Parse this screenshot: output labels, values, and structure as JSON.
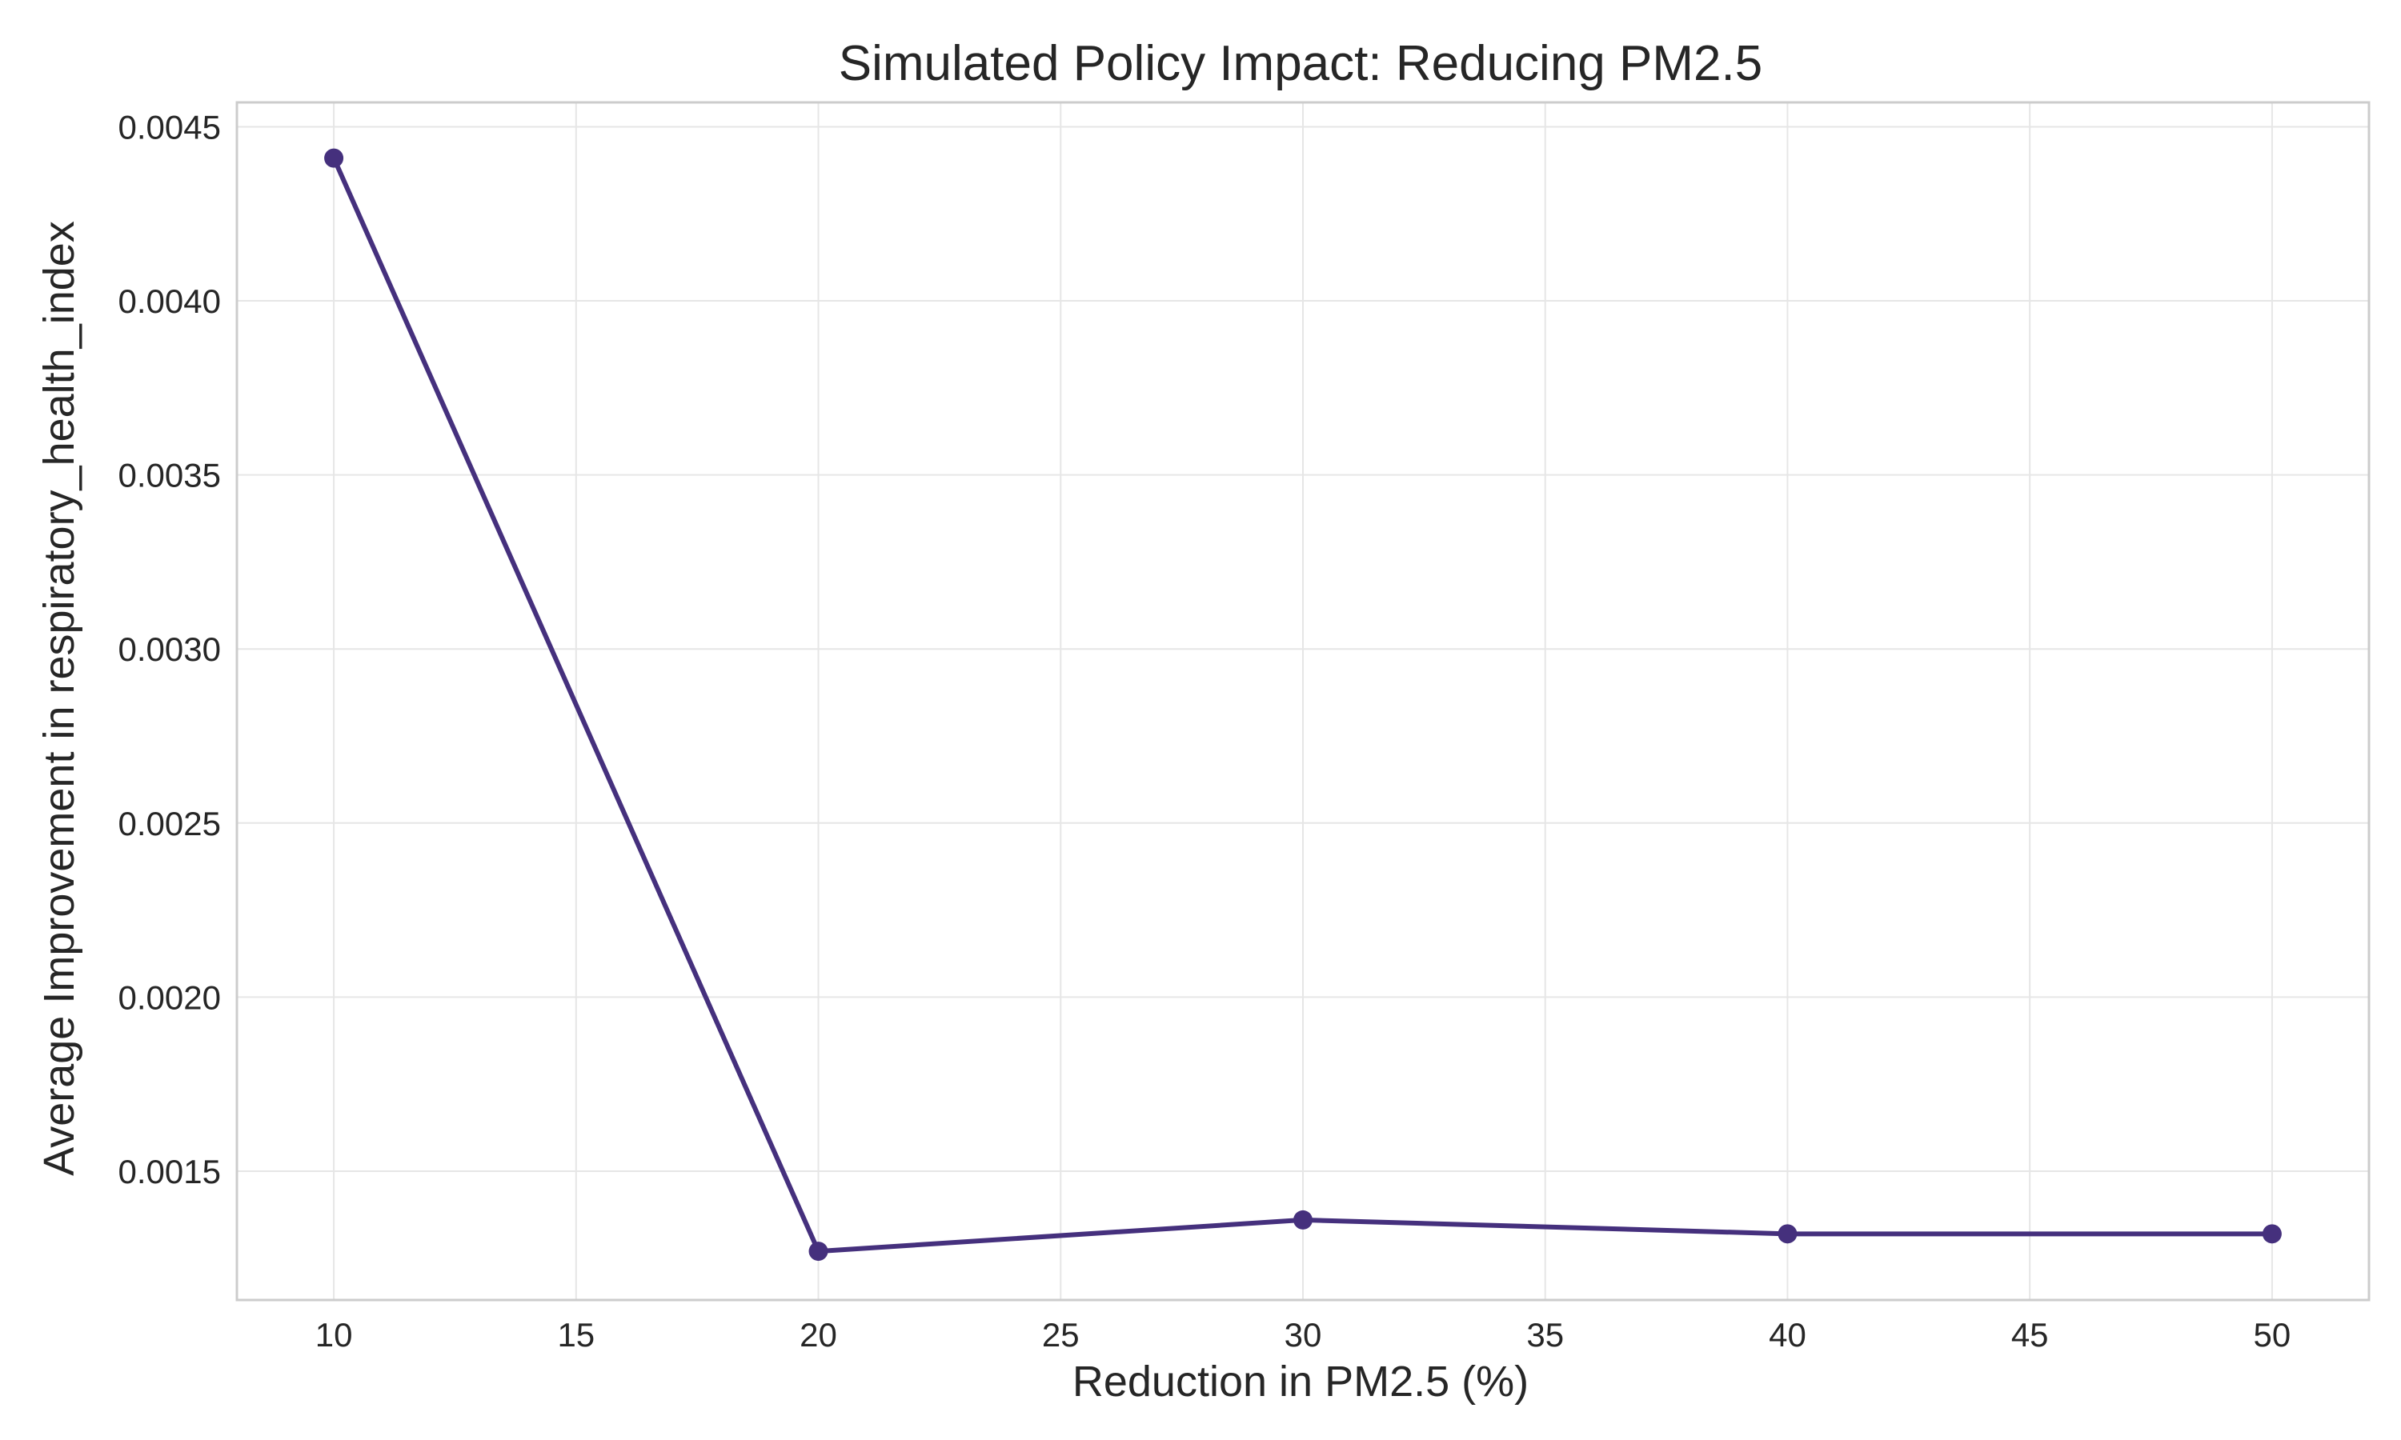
{
  "chart_data": {
    "type": "line",
    "title": "Simulated Policy Impact: Reducing PM2.5",
    "xlabel": "Reduction in PM2.5 (%)",
    "ylabel": "Average Improvement in respiratory_health_index",
    "x": [
      10,
      20,
      30,
      40,
      50
    ],
    "series": [
      {
        "values": [
          0.00441,
          0.00127,
          0.00136,
          0.00132,
          0.00132
        ]
      }
    ],
    "xlim": [
      8,
      52
    ],
    "ylim": [
      0.00113,
      0.00457
    ],
    "xticks": [
      10,
      15,
      20,
      25,
      30,
      35,
      40,
      45,
      50
    ],
    "xtick_labels": [
      "10",
      "15",
      "20",
      "25",
      "30",
      "35",
      "40",
      "45",
      "50"
    ],
    "yticks": [
      0.0015,
      0.002,
      0.0025,
      0.003,
      0.0035,
      0.004,
      0.0045
    ],
    "ytick_labels": [
      "0.0015",
      "0.0020",
      "0.0025",
      "0.0030",
      "0.0035",
      "0.0040",
      "0.0045"
    ],
    "grid": true,
    "line_color": "#45307d"
  }
}
